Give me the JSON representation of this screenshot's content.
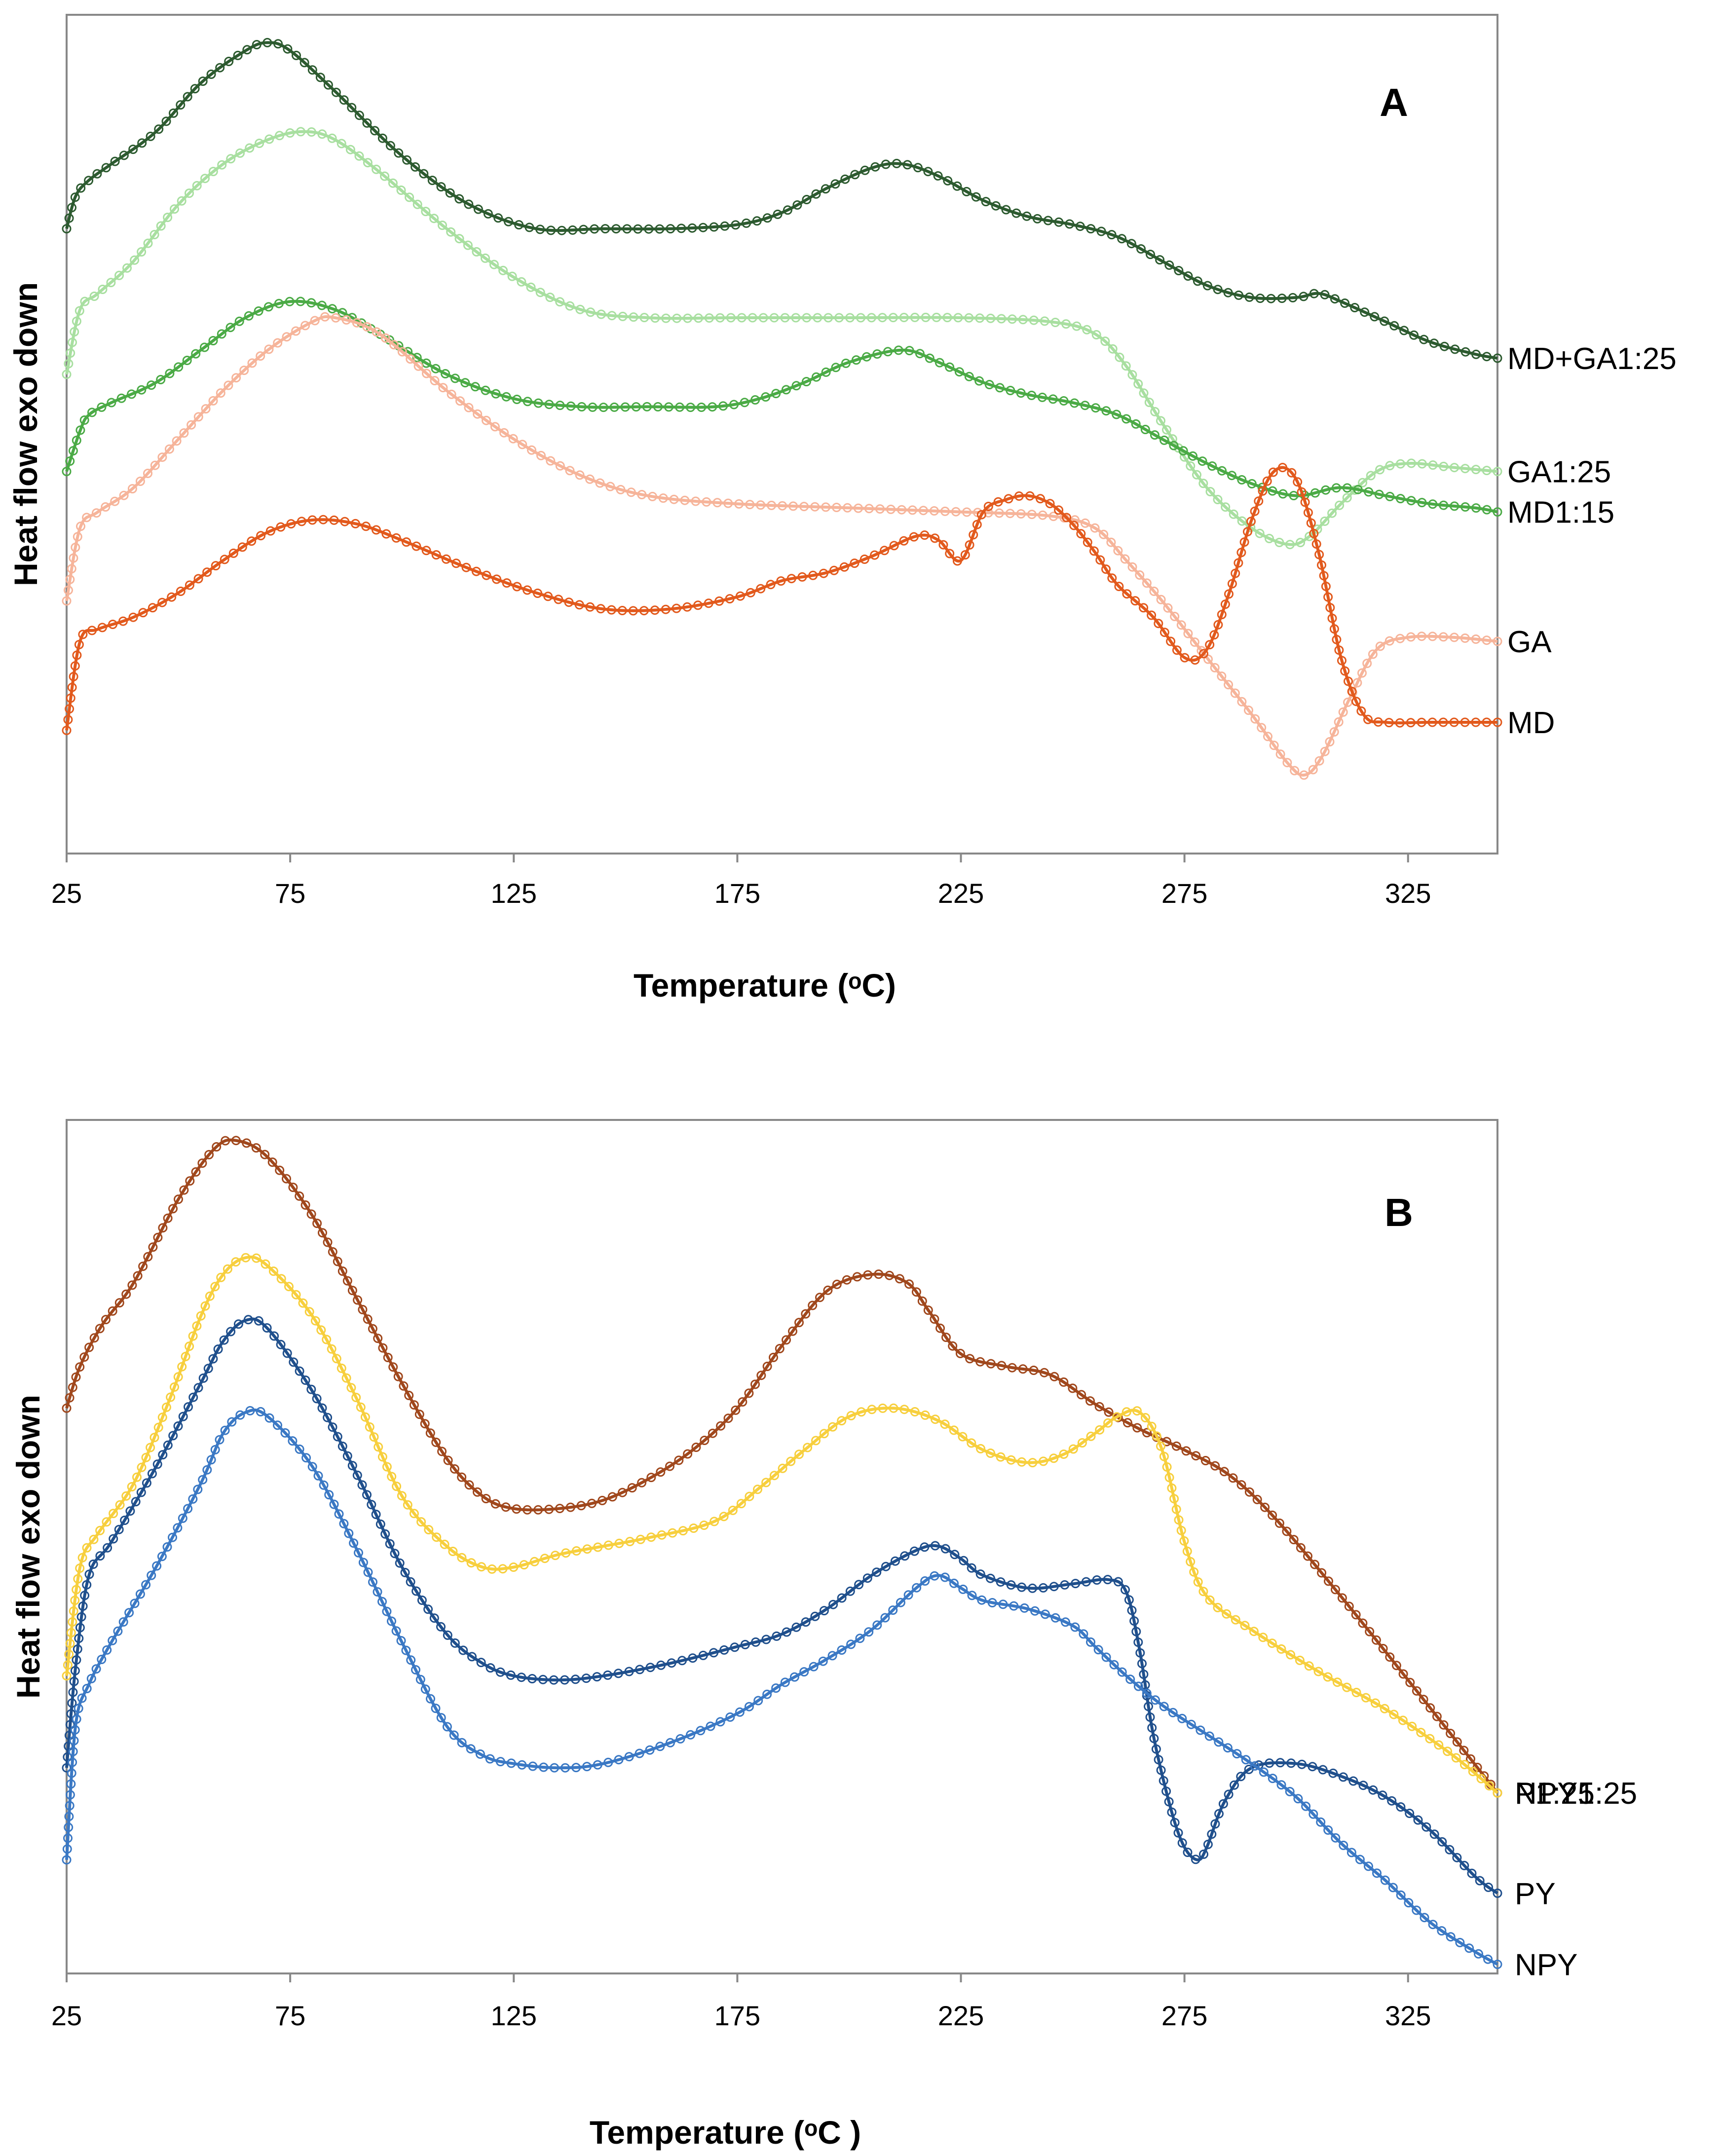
{
  "figure": {
    "colors": {
      "MD+GA1:25": "#2c5a2f",
      "GA1:25": "#a8dfa0",
      "MD1:15": "#4aaa45",
      "GA": "#f6b49a",
      "MD": "#e2591c",
      "NPY1:25": "#a0471c",
      "P1:25": "#f7cf3d",
      "PY": "#1f4f8c",
      "NPY": "#3a78c4"
    }
  },
  "chart_data": [
    {
      "type": "line",
      "panel": "A",
      "title": "A",
      "xlabel": "Temperature (ᵒC)",
      "ylabel": "Heat flow exo down",
      "xlim": [
        25,
        345
      ],
      "ylim": [
        0,
        100
      ],
      "xticks": [
        "25",
        "75",
        "125",
        "175",
        "225",
        "275",
        "325"
      ],
      "y_tick_labels": false,
      "grid": false,
      "legend": "series labels at right end of each curve",
      "series": [
        {
          "name": "MD+GA1:25",
          "x": [
            25,
            27,
            30,
            35,
            45,
            55,
            65,
            70,
            75,
            85,
            100,
            115,
            130,
            145,
            160,
            175,
            185,
            195,
            205,
            212,
            220,
            230,
            240,
            250,
            260,
            270,
            280,
            290,
            300,
            305,
            310,
            320,
            330,
            340,
            345
          ],
          "y": [
            76,
            80,
            82,
            84,
            88,
            94,
            98,
            99,
            98,
            93,
            85,
            79,
            76,
            76,
            76,
            76.5,
            78,
            81,
            83.5,
            84,
            82.5,
            79.5,
            77.5,
            76.5,
            75,
            72,
            69,
            67.5,
            67.5,
            68,
            67,
            64.5,
            62,
            60.5,
            60
          ]
        },
        {
          "name": "GA1:25",
          "x": [
            25,
            28,
            32,
            40,
            50,
            60,
            70,
            78,
            85,
            95,
            110,
            125,
            140,
            155,
            175,
            200,
            225,
            245,
            255,
            262,
            270,
            280,
            290,
            298,
            303,
            310,
            318,
            325,
            335,
            345
          ],
          "y": [
            58,
            66,
            68,
            72,
            79,
            84,
            87,
            88,
            87,
            83,
            76,
            70,
            66,
            65,
            65,
            65,
            65,
            64.5,
            63,
            59,
            52,
            44,
            39,
            37,
            38,
            42,
            46,
            47,
            46.5,
            46
          ]
        },
        {
          "name": "MD1:15",
          "x": [
            25,
            28,
            30,
            35,
            45,
            55,
            65,
            75,
            85,
            95,
            110,
            125,
            140,
            155,
            170,
            180,
            190,
            200,
            212,
            220,
            230,
            240,
            250,
            260,
            270,
            280,
            290,
            300,
            310,
            320,
            330,
            340,
            345
          ],
          "y": [
            46,
            51,
            53,
            54.5,
            57,
            61,
            65,
            67,
            66,
            63,
            58,
            55,
            54,
            54,
            54,
            55,
            57,
            59.5,
            61,
            59.5,
            57,
            55.5,
            54.5,
            53,
            50,
            47,
            44.5,
            43,
            44,
            43,
            42,
            41.5,
            41
          ]
        },
        {
          "name": "GA",
          "x": [
            25,
            28,
            32,
            40,
            50,
            60,
            70,
            80,
            85,
            95,
            110,
            125,
            140,
            155,
            175,
            200,
            225,
            245,
            255,
            262,
            270,
            280,
            290,
            298,
            302,
            306,
            312,
            318,
            325,
            335,
            345
          ],
          "y": [
            30,
            39,
            41,
            44,
            50,
            56,
            61,
            64.5,
            65,
            63,
            56,
            50,
            45.5,
            43,
            42,
            41.5,
            41,
            40.5,
            39,
            35,
            30,
            23,
            16,
            10,
            8.5,
            11,
            18,
            24,
            25.5,
            25.5,
            25
          ]
        },
        {
          "name": "MD",
          "x": [
            25,
            28,
            32,
            40,
            50,
            60,
            70,
            80,
            90,
            100,
            115,
            130,
            145,
            160,
            175,
            185,
            195,
            205,
            215,
            220,
            225,
            230,
            235,
            240,
            245,
            250,
            255,
            260,
            268,
            275,
            280,
            285,
            290,
            295,
            300,
            305,
            310,
            315,
            320,
            330,
            340,
            345
          ],
          "y": [
            14,
            25,
            26.5,
            28,
            31,
            35,
            38.5,
            40,
            39.5,
            37.5,
            34,
            31,
            29,
            29,
            30.5,
            32.5,
            33.5,
            35.5,
            38,
            37.5,
            35,
            41,
            42.5,
            43,
            42,
            39.5,
            36,
            32,
            28,
            23,
            24,
            31,
            40,
            46,
            45,
            36,
            23,
            16,
            15,
            15,
            15,
            15
          ]
        }
      ]
    },
    {
      "type": "line",
      "panel": "B",
      "title": "B",
      "xlabel": "Temperature (ᵒC )",
      "ylabel": "Heat flow exo down",
      "xlim": [
        25,
        345
      ],
      "ylim": [
        0,
        100
      ],
      "xticks": [
        "25",
        "75",
        "125",
        "175",
        "225",
        "275",
        "325"
      ],
      "y_tick_labels": false,
      "grid": false,
      "legend": "series labels at right end of each curve",
      "series": [
        {
          "name": "NPY1:25",
          "x": [
            25,
            28,
            33,
            40,
            50,
            58,
            63,
            70,
            80,
            90,
            100,
            110,
            118,
            125,
            135,
            145,
            155,
            165,
            175,
            185,
            195,
            205,
            213,
            218,
            225,
            235,
            245,
            255,
            265,
            275,
            285,
            295,
            310,
            325,
            345
          ],
          "y": [
            67,
            72,
            77,
            82,
            92,
            98,
            99,
            97,
            90,
            80,
            70,
            61,
            56.5,
            55,
            55,
            56,
            58.5,
            62,
            67,
            74.5,
            81,
            83,
            82,
            78.5,
            73.5,
            72,
            71,
            67.5,
            64.5,
            62,
            59,
            54,
            44.5,
            34.5,
            21
          ]
        },
        {
          "name": "P1:25",
          "x": [
            25,
            28,
            32,
            40,
            48,
            55,
            60,
            65,
            70,
            80,
            90,
            100,
            110,
            118,
            125,
            135,
            145,
            155,
            170,
            180,
            190,
            200,
            210,
            220,
            230,
            240,
            248,
            255,
            260,
            265,
            270,
            275,
            280,
            290,
            305,
            320,
            335,
            345
          ],
          "y": [
            35,
            48,
            52,
            58,
            68,
            78,
            83,
            85,
            84,
            78,
            68,
            56.5,
            50.5,
            48,
            48,
            49.5,
            50.5,
            51.5,
            53.5,
            57.5,
            62,
            66,
            67,
            65.5,
            62,
            60.5,
            61.5,
            64,
            66,
            66.5,
            62,
            51,
            44.5,
            40.5,
            35.5,
            31,
            25.5,
            21
          ]
        },
        {
          "name": "PY",
          "x": [
            25,
            27,
            30,
            35,
            45,
            55,
            60,
            65,
            70,
            80,
            90,
            100,
            110,
            118,
            125,
            135,
            145,
            160,
            175,
            185,
            195,
            205,
            215,
            220,
            225,
            230,
            240,
            250,
            258,
            262,
            265,
            268,
            272,
            275,
            278,
            280,
            284,
            290,
            300,
            310,
            320,
            330,
            340,
            345
          ],
          "y": [
            24,
            36,
            47,
            51,
            60,
            70,
            75,
            77.5,
            76.5,
            69,
            59,
            48,
            40,
            36.5,
            35,
            34.5,
            35,
            36.5,
            38.5,
            40,
            43,
            47,
            50,
            50.5,
            49,
            47,
            45.5,
            46,
            46.5,
            45,
            38,
            28,
            19,
            14.5,
            13,
            14.5,
            20,
            24,
            24.5,
            23,
            20.5,
            16.5,
            11,
            9
          ]
        },
        {
          "name": "NPY",
          "x": [
            25,
            27,
            30,
            35,
            45,
            55,
            60,
            65,
            70,
            80,
            90,
            100,
            110,
            118,
            125,
            135,
            145,
            160,
            175,
            185,
            195,
            205,
            215,
            220,
            225,
            230,
            240,
            250,
            255,
            262,
            270,
            280,
            290,
            300,
            310,
            320,
            330,
            340,
            345
          ],
          "y": [
            13,
            29,
            34,
            39,
            48,
            58,
            64,
            66.5,
            66,
            60,
            50,
            39,
            29,
            25.5,
            24.5,
            24,
            24.5,
            27,
            30.5,
            34,
            37,
            40.5,
            45.5,
            47,
            45.5,
            44,
            43,
            41,
            38.5,
            35,
            31.5,
            28,
            24.5,
            20.5,
            15,
            10.5,
            5.5,
            2,
            0.5
          ]
        }
      ]
    }
  ]
}
